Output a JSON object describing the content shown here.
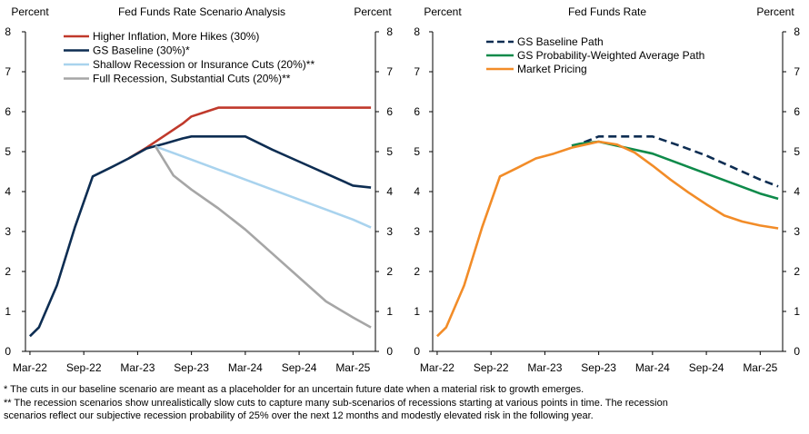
{
  "chart_data": [
    {
      "type": "line",
      "title": "Fed Funds Rate Scenario Analysis",
      "ylabel_left": "Percent",
      "ylabel_right": "Percent",
      "ylim": [
        0,
        8
      ],
      "yticks": [
        0,
        1,
        2,
        3,
        4,
        5,
        6,
        7,
        8
      ],
      "x_tick_labels": [
        "Mar-22",
        "Sep-22",
        "Mar-23",
        "Sep-23",
        "Mar-24",
        "Sep-24",
        "Mar-25"
      ],
      "x_tick_positions": [
        0,
        6,
        12,
        18,
        24,
        30,
        36
      ],
      "xlim": [
        -0.5,
        38.5
      ],
      "legend_position": "top-left",
      "series": [
        {
          "name": "Higher Inflation, More Hikes (30%)",
          "color": "#C0392B",
          "dash": "solid",
          "x": [
            11,
            13,
            15,
            17,
            18,
            21,
            24,
            27,
            30,
            33,
            36,
            38
          ],
          "y": [
            4.83,
            5.1,
            5.4,
            5.7,
            5.88,
            6.1,
            6.1,
            6.1,
            6.1,
            6.1,
            6.1,
            6.1
          ]
        },
        {
          "name": "GS Baseline (30%)*",
          "color": "#0D2D52",
          "dash": "solid",
          "x": [
            0,
            1,
            3,
            5,
            7,
            9,
            11,
            13,
            15,
            17,
            18,
            21,
            24,
            27,
            30,
            33,
            36,
            38
          ],
          "y": [
            0.38,
            0.6,
            1.65,
            3.1,
            4.38,
            4.6,
            4.83,
            5.08,
            5.2,
            5.33,
            5.38,
            5.38,
            5.38,
            5.05,
            4.75,
            4.45,
            4.15,
            4.1
          ]
        },
        {
          "name": "Shallow Recession or Insurance Cuts (20%)**",
          "color": "#A9D3EE",
          "dash": "solid",
          "x": [
            14,
            18,
            21,
            24,
            27,
            30,
            33,
            36,
            38
          ],
          "y": [
            5.13,
            4.8,
            4.55,
            4.3,
            4.05,
            3.8,
            3.55,
            3.3,
            3.1
          ]
        },
        {
          "name": "Full Recession, Substantial Cuts (20%)**",
          "color": "#A6A6A6",
          "dash": "solid",
          "x": [
            14,
            16,
            18,
            21,
            24,
            27,
            30,
            33,
            36,
            38
          ],
          "y": [
            5.13,
            4.4,
            4.05,
            3.58,
            3.05,
            2.45,
            1.85,
            1.25,
            0.85,
            0.6
          ]
        }
      ]
    },
    {
      "type": "line",
      "title": "Fed Funds Rate",
      "ylabel_left": "Percent",
      "ylabel_right": "Percent",
      "ylim": [
        0,
        8
      ],
      "yticks": [
        0,
        1,
        2,
        3,
        4,
        5,
        6,
        7,
        8
      ],
      "x_tick_labels": [
        "Mar-22",
        "Sep-22",
        "Mar-23",
        "Sep-23",
        "Mar-24",
        "Sep-24",
        "Mar-25"
      ],
      "x_tick_positions": [
        0,
        6,
        12,
        18,
        24,
        30,
        36
      ],
      "xlim": [
        -0.5,
        38.5
      ],
      "legend_position": "top-left",
      "series": [
        {
          "name": "GS Baseline Path",
          "color": "#0D2D52",
          "dash": "dashed",
          "x": [
            15,
            16,
            18,
            21,
            24,
            27,
            30,
            33,
            36,
            38
          ],
          "y": [
            5.15,
            5.2,
            5.38,
            5.38,
            5.38,
            5.15,
            4.9,
            4.6,
            4.3,
            4.13
          ]
        },
        {
          "name": "GS Probability-Weighted Average Path",
          "color": "#0E8A4A",
          "dash": "solid",
          "x": [
            15,
            16,
            18,
            21,
            24,
            27,
            30,
            33,
            36,
            38
          ],
          "y": [
            5.15,
            5.2,
            5.25,
            5.1,
            4.95,
            4.7,
            4.45,
            4.2,
            3.95,
            3.82
          ]
        },
        {
          "name": "Market Pricing",
          "color": "#F28C28",
          "dash": "solid",
          "x": [
            0,
            1,
            3,
            5,
            7,
            9,
            11,
            13,
            15,
            17,
            18,
            20,
            22,
            24,
            26,
            28,
            30,
            32,
            34,
            36,
            38
          ],
          "y": [
            0.38,
            0.6,
            1.65,
            3.1,
            4.38,
            4.6,
            4.83,
            4.95,
            5.1,
            5.2,
            5.25,
            5.18,
            4.98,
            4.65,
            4.3,
            3.98,
            3.68,
            3.4,
            3.25,
            3.15,
            3.08
          ]
        }
      ]
    }
  ],
  "notes": [
    "* The cuts in our baseline scenario are meant as a placeholder for an uncertain future date when a material risk to growth emerges.",
    "** The recession scenarios show unrealistically slow cuts to capture many sub-scenarios of recessions starting at various points in time.  The recession",
    "scenarios reflect our subjective recession probability of 25% over the next 12 months and modestly elevated risk in the following year."
  ]
}
